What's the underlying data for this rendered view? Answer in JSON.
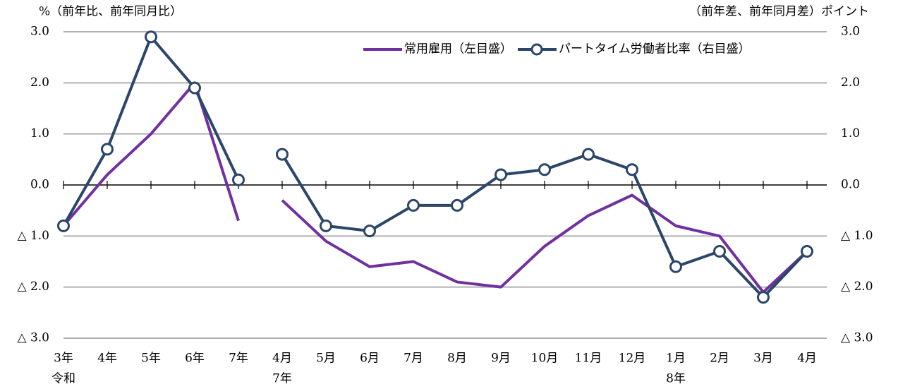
{
  "chart_data": {
    "type": "line",
    "y_label": "%（前年比、前年同月比）",
    "y2_label": "（前年差、前年同月差）ポイント",
    "categories": [
      "3年",
      "4年",
      "5年",
      "6年",
      "7年",
      "4月",
      "5月",
      "6月",
      "7月",
      "8月",
      "9月",
      "10月",
      "11月",
      "12月",
      "1月",
      "2月",
      "3月",
      "4月"
    ],
    "group_labels": [
      "令和",
      null,
      null,
      null,
      null,
      "7年",
      null,
      null,
      null,
      null,
      null,
      null,
      null,
      null,
      "8年",
      null,
      null,
      null
    ],
    "break_after": 4,
    "series": [
      {
        "name": "常用雇用（左目盛）",
        "color": "#7030a0",
        "axis": "y",
        "marker": false,
        "values": [
          -0.8,
          0.2,
          1.0,
          2.0,
          -0.7,
          -0.3,
          -1.1,
          -1.6,
          -1.5,
          -1.9,
          -2.0,
          -1.2,
          -0.6,
          -0.2,
          -0.8,
          -1.0,
          -2.1,
          -1.3
        ]
      },
      {
        "name": "パートタイム労働者比率（右目盛）",
        "color": "#2b4669",
        "axis": "y2",
        "marker": true,
        "values": [
          -0.8,
          0.7,
          2.9,
          1.9,
          0.1,
          0.6,
          -0.8,
          -0.9,
          -0.4,
          -0.4,
          0.2,
          0.3,
          0.6,
          0.3,
          -1.6,
          -1.3,
          -2.2,
          -1.3
        ]
      }
    ],
    "ylim": [
      -3,
      3
    ],
    "yticks": [
      {
        "value": 3,
        "label": "3.0"
      },
      {
        "value": 2,
        "label": "2.0"
      },
      {
        "value": 1,
        "label": "1.0"
      },
      {
        "value": 0,
        "label": "0.0"
      },
      {
        "value": -1,
        "label": "△ 1.0"
      },
      {
        "value": -2,
        "label": "△ 2.0"
      },
      {
        "value": -3,
        "label": "△ 3.0"
      }
    ],
    "y2lim": [
      -3,
      3
    ],
    "y2ticks": [
      {
        "value": 3,
        "label": "3.0"
      },
      {
        "value": 2,
        "label": "2.0"
      },
      {
        "value": 1,
        "label": "1.0"
      },
      {
        "value": 0,
        "label": "0.0"
      },
      {
        "value": -1,
        "label": "△ 1.0"
      },
      {
        "value": -2,
        "label": "△ 2.0"
      },
      {
        "value": -3,
        "label": "△ 3.0"
      }
    ],
    "grid": true,
    "legend": "upper right"
  }
}
